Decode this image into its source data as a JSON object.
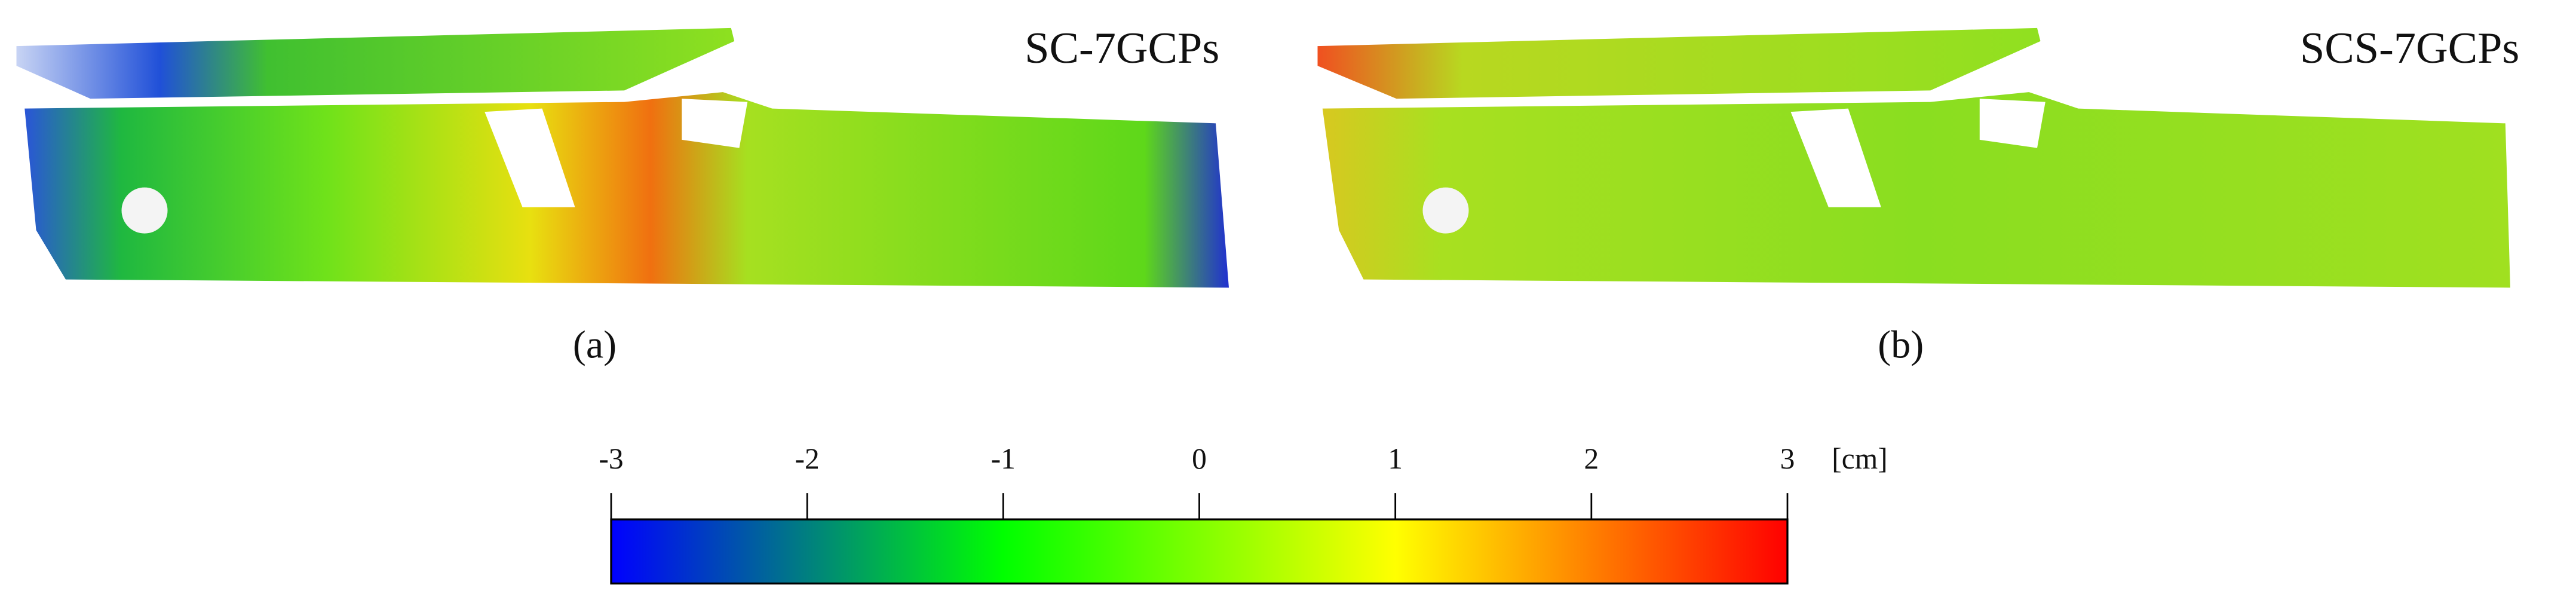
{
  "panels": [
    {
      "title": "SC-7GCPs",
      "caption": "(a)"
    },
    {
      "title": "SCS-7GCPs",
      "caption": "(b)"
    }
  ],
  "colorbar": {
    "ticks": [
      -3,
      -2,
      -1,
      0,
      1,
      2,
      3
    ],
    "unit": "[cm]",
    "stops": [
      {
        "value": -3,
        "color": "#0000ff"
      },
      {
        "value": -1,
        "color": "#00ff00"
      },
      {
        "value": 1,
        "color": "#ffff00"
      },
      {
        "value": 3,
        "color": "#ff0000"
      }
    ]
  }
}
